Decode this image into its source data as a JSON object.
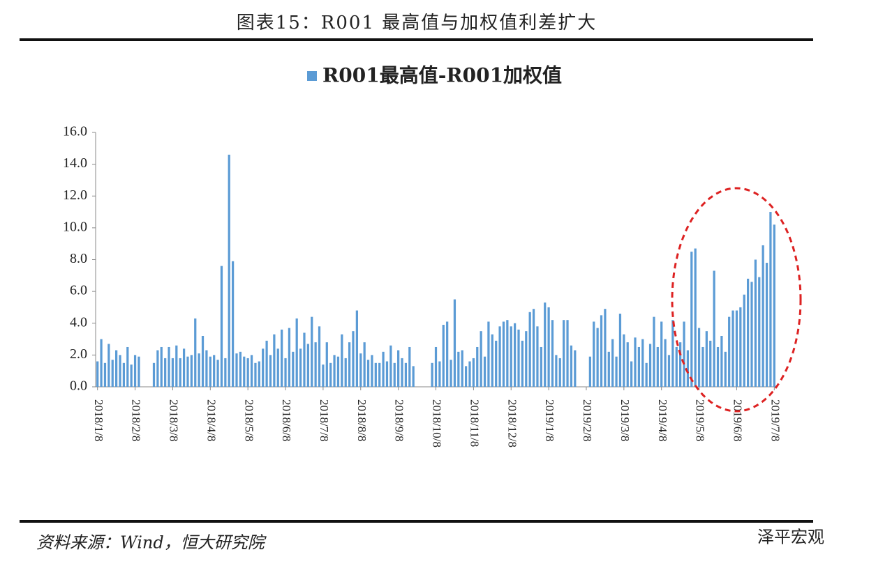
{
  "header": {
    "title": "图表15：R001 最高值与加权值利差扩大"
  },
  "chart_data": {
    "type": "bar",
    "series": [
      {
        "name": "R001最高值-R001加权值",
        "color": "#5b9bd5",
        "values": [
          1.6,
          3.0,
          1.5,
          2.7,
          1.7,
          2.3,
          2.0,
          1.5,
          2.5,
          1.4,
          2.0,
          1.9,
          0,
          0,
          0,
          1.5,
          2.3,
          2.5,
          1.8,
          2.5,
          1.8,
          2.6,
          1.8,
          2.4,
          1.9,
          2.0,
          4.3,
          2.1,
          3.2,
          2.3,
          1.9,
          2.0,
          1.7,
          7.6,
          1.8,
          14.6,
          7.9,
          2.1,
          2.2,
          1.9,
          1.8,
          2.0,
          1.5,
          1.6,
          2.4,
          2.9,
          2.0,
          3.3,
          2.4,
          3.6,
          1.8,
          3.7,
          2.2,
          4.3,
          2.4,
          3.4,
          2.7,
          4.4,
          2.8,
          3.8,
          1.4,
          2.8,
          1.5,
          2.0,
          1.9,
          3.3,
          1.8,
          2.8,
          3.5,
          4.8,
          2.1,
          2.8,
          1.7,
          2.0,
          1.5,
          1.5,
          2.2,
          1.6,
          2.6,
          1.5,
          2.3,
          1.8,
          1.5,
          2.5,
          1.3,
          0,
          0,
          0,
          0,
          1.5,
          2.5,
          1.6,
          3.9,
          4.1,
          1.7,
          5.5,
          2.2,
          2.3,
          1.3,
          1.6,
          1.8,
          2.5,
          3.5,
          1.9,
          4.1,
          3.3,
          2.9,
          3.8,
          4.1,
          4.2,
          3.8,
          4.0,
          3.6,
          2.9,
          3.5,
          4.7,
          4.9,
          3.8,
          2.5,
          5.3,
          5.0,
          4.2,
          2.0,
          1.8,
          4.2,
          4.2,
          2.6,
          2.3,
          0,
          0,
          0,
          1.9,
          4.1,
          3.7,
          4.5,
          4.9,
          2.2,
          3.0,
          1.9,
          4.6,
          3.3,
          2.8,
          1.6,
          3.1,
          2.5,
          3.0,
          1.5,
          2.7,
          4.4,
          2.5,
          4.1,
          3.0,
          2.0,
          4.2,
          2.5,
          2.8,
          4.1,
          2.3,
          8.5,
          8.7,
          3.7,
          2.5,
          3.5,
          2.9,
          7.3,
          2.5,
          3.2,
          2.2,
          4.4,
          4.8,
          4.8,
          5.0,
          5.8,
          6.8,
          6.6,
          8.0,
          6.9,
          8.9,
          7.8,
          11.0,
          10.2
        ]
      }
    ],
    "categories": [
      "2018/1/8",
      null,
      null,
      null,
      null,
      null,
      null,
      null,
      null,
      null,
      "2018/2/8",
      null,
      null,
      null,
      null,
      null,
      null,
      null,
      null,
      null,
      "2018/3/8",
      null,
      null,
      null,
      null,
      null,
      null,
      null,
      null,
      null,
      "2018/4/8",
      null,
      null,
      null,
      null,
      null,
      null,
      null,
      null,
      null,
      "2018/5/8",
      null,
      null,
      null,
      null,
      null,
      null,
      null,
      null,
      null,
      "2018/6/8",
      null,
      null,
      null,
      null,
      null,
      null,
      null,
      null,
      null,
      "2018/7/8",
      null,
      null,
      null,
      null,
      null,
      null,
      null,
      null,
      null,
      "2018/8/8",
      null,
      null,
      null,
      null,
      null,
      null,
      null,
      null,
      null,
      "2018/9/8",
      null,
      null,
      null,
      null,
      null,
      null,
      null,
      null,
      null,
      "2018/10/8",
      null,
      null,
      null,
      null,
      null,
      null,
      null,
      null,
      null,
      "2018/11/8",
      null,
      null,
      null,
      null,
      null,
      null,
      null,
      null,
      null,
      "2018/12/8",
      null,
      null,
      null,
      null,
      null,
      null,
      null,
      null,
      null,
      "2019/1/8",
      null,
      null,
      null,
      null,
      null,
      null,
      null,
      null,
      null,
      "2019/2/8",
      null,
      null,
      null,
      null,
      null,
      null,
      null,
      null,
      null,
      "2019/3/8",
      null,
      null,
      null,
      null,
      null,
      null,
      null,
      null,
      null,
      "2019/4/8",
      null,
      null,
      null,
      null,
      null,
      null,
      null,
      null,
      null,
      "2019/5/8",
      null,
      null,
      null,
      null,
      null,
      null,
      null,
      null,
      null,
      "2019/6/8",
      null,
      null,
      null,
      null,
      null,
      null,
      null,
      null,
      null,
      "2019/7/8"
    ],
    "ylim": [
      0,
      16
    ],
    "yticks": [
      {
        "value": 0,
        "label": "0.0"
      },
      {
        "value": 2,
        "label": "2.0"
      },
      {
        "value": 4,
        "label": "4.0"
      },
      {
        "value": 6,
        "label": "6.0"
      },
      {
        "value": 8,
        "label": "8.0"
      },
      {
        "value": 10,
        "label": "10.0"
      },
      {
        "value": 12,
        "label": "12.0"
      },
      {
        "value": 14,
        "label": "14.0"
      },
      {
        "value": 16,
        "label": "16.0"
      }
    ],
    "grid": false,
    "legend": "top"
  },
  "footer": {
    "source": "资料来源：Wind，恒大研究院",
    "watermark": "泽平宏观"
  }
}
